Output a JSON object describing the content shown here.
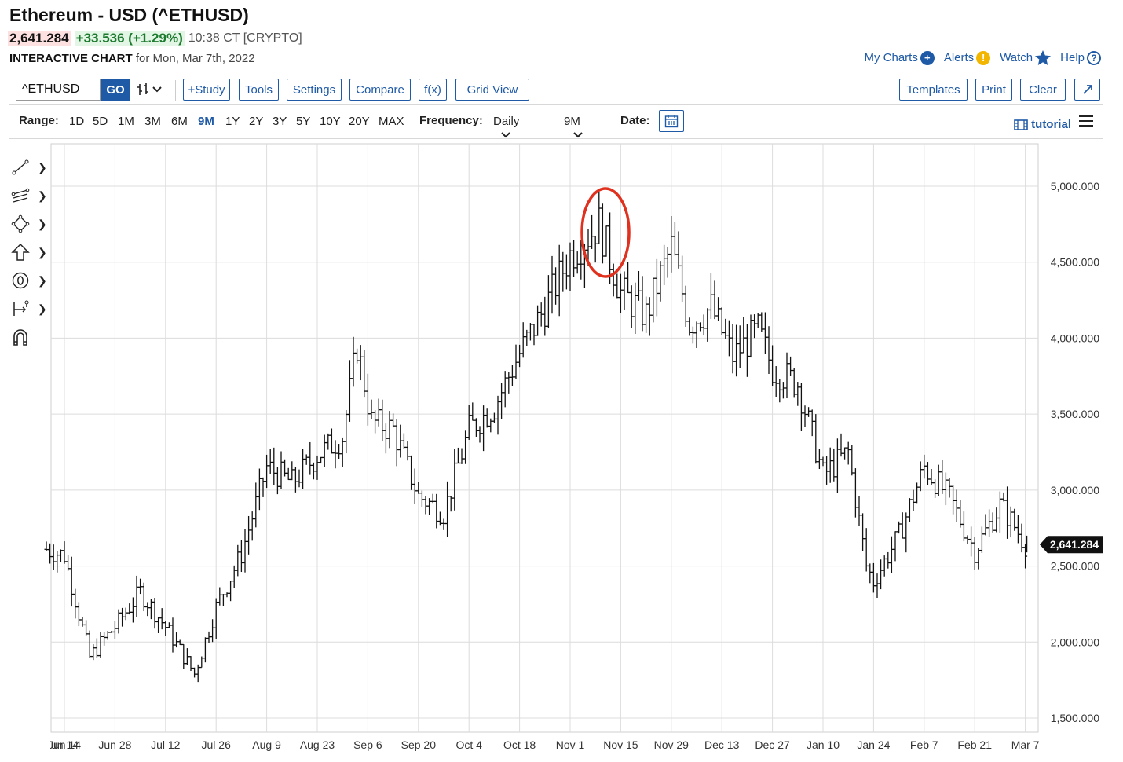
{
  "header": {
    "title": "Ethereum - USD (^ETHUSD)",
    "price": "2,641.284",
    "change": "+33.536 (+1.29%)",
    "time": "10:38 CT [CRYPTO]",
    "subtitle_bold": "INTERACTIVE CHART",
    "subtitle_rest": " for Mon, Mar 7th, 2022"
  },
  "top_links": {
    "my_charts": "My Charts",
    "alerts": "Alerts",
    "watch": "Watch",
    "help": "Help"
  },
  "toolbar": {
    "symbol_value": "^ETHUSD",
    "go": "GO",
    "study": "+Study",
    "tools": "Tools",
    "settings": "Settings",
    "compare": "Compare",
    "fx": "f(x)",
    "grid_view": "Grid View",
    "templates": "Templates",
    "print": "Print",
    "clear": "Clear"
  },
  "rangebar": {
    "range_label": "Range:",
    "ranges": [
      "1D",
      "5D",
      "1M",
      "3M",
      "6M",
      "9M",
      "1Y",
      "2Y",
      "3Y",
      "5Y",
      "10Y",
      "20Y",
      "MAX"
    ],
    "active_range": "9M",
    "frequency_label": "Frequency:",
    "frequency_value": "Daily",
    "period_value": "9M",
    "date_label": "Date:",
    "tutorial": "tutorial"
  },
  "icons": [
    "plus-circle-icon",
    "alert-icon",
    "star-icon",
    "help-icon",
    "bar-type-icon",
    "calendar-icon",
    "film-icon",
    "menu-icon",
    "expand-icon",
    "line-tool-icon",
    "channel-tool-icon",
    "shape-tool-icon",
    "arrow-tool-icon",
    "count-tool-icon",
    "measure-tool-icon",
    "magnet-icon"
  ],
  "colors": {
    "accent": "#1f5aa6",
    "up": "#1b7a2e",
    "annotation": "#e0301e",
    "bars": "#111111"
  },
  "chart_data": {
    "type": "ohlc",
    "y_axis_ticks": [
      "5,000.000",
      "4,500.000",
      "4,000.000",
      "3,500.000",
      "3,000.000",
      "2,500.000",
      "2,000.000",
      "1,500.000"
    ],
    "x_axis_labels": [
      "Jun 14",
      "Jun 28",
      "Jul 12",
      "Jul 26",
      "Aug 9",
      "Aug 23",
      "Sep 6",
      "Sep 20",
      "Oct 4",
      "Oct 18",
      "Nov 1",
      "Nov 15",
      "Nov 29",
      "Dec 13",
      "Dec 27",
      "Jan 10",
      "Jan 24",
      "Feb 7",
      "Feb 21",
      "Mar 7"
    ],
    "last_value_label": "2,641.284",
    "last_value": 2641.284,
    "ylim": [
      1450,
      5200
    ],
    "grid": true,
    "annotation": "red ellipse around the November 2021 peak",
    "series": [
      {
        "date": "2021-06-09",
        "close": 2610
      },
      {
        "date": "2021-06-14",
        "close": 2570
      },
      {
        "date": "2021-06-21",
        "close": 1900
      },
      {
        "date": "2021-06-24",
        "close": 1990
      },
      {
        "date": "2021-06-28",
        "close": 2100
      },
      {
        "date": "2021-07-05",
        "close": 2330
      },
      {
        "date": "2021-07-12",
        "close": 2100
      },
      {
        "date": "2021-07-20",
        "close": 1790
      },
      {
        "date": "2021-07-26",
        "close": 2230
      },
      {
        "date": "2021-08-02",
        "close": 2580
      },
      {
        "date": "2021-08-09",
        "close": 3150
      },
      {
        "date": "2021-08-16",
        "close": 3050
      },
      {
        "date": "2021-08-23",
        "close": 3230
      },
      {
        "date": "2021-08-30",
        "close": 3350
      },
      {
        "date": "2021-09-03",
        "close": 3950
      },
      {
        "date": "2021-09-07",
        "close": 3450
      },
      {
        "date": "2021-09-13",
        "close": 3400
      },
      {
        "date": "2021-09-20",
        "close": 2960
      },
      {
        "date": "2021-09-27",
        "close": 2850
      },
      {
        "date": "2021-10-04",
        "close": 3400
      },
      {
        "date": "2021-10-11",
        "close": 3550
      },
      {
        "date": "2021-10-18",
        "close": 3900
      },
      {
        "date": "2021-10-25",
        "close": 4200
      },
      {
        "date": "2021-11-01",
        "close": 4550
      },
      {
        "date": "2021-11-09",
        "close": 4750
      },
      {
        "date": "2021-11-15",
        "close": 4300
      },
      {
        "date": "2021-11-22",
        "close": 4150
      },
      {
        "date": "2021-11-29",
        "close": 4600
      },
      {
        "date": "2021-12-04",
        "close": 4100
      },
      {
        "date": "2021-12-10",
        "close": 4200
      },
      {
        "date": "2021-12-16",
        "close": 3880
      },
      {
        "date": "2021-12-23",
        "close": 4050
      },
      {
        "date": "2021-12-27",
        "close": 3800
      },
      {
        "date": "2022-01-03",
        "close": 3700
      },
      {
        "date": "2022-01-10",
        "close": 3100
      },
      {
        "date": "2022-01-17",
        "close": 3250
      },
      {
        "date": "2022-01-22",
        "close": 2500
      },
      {
        "date": "2022-01-24",
        "close": 2400
      },
      {
        "date": "2022-01-31",
        "close": 2700
      },
      {
        "date": "2022-02-07",
        "close": 3150
      },
      {
        "date": "2022-02-14",
        "close": 2950
      },
      {
        "date": "2022-02-21",
        "close": 2600
      },
      {
        "date": "2022-02-28",
        "close": 2900
      },
      {
        "date": "2022-03-03",
        "close": 2800
      },
      {
        "date": "2022-03-07",
        "close": 2641
      }
    ]
  }
}
